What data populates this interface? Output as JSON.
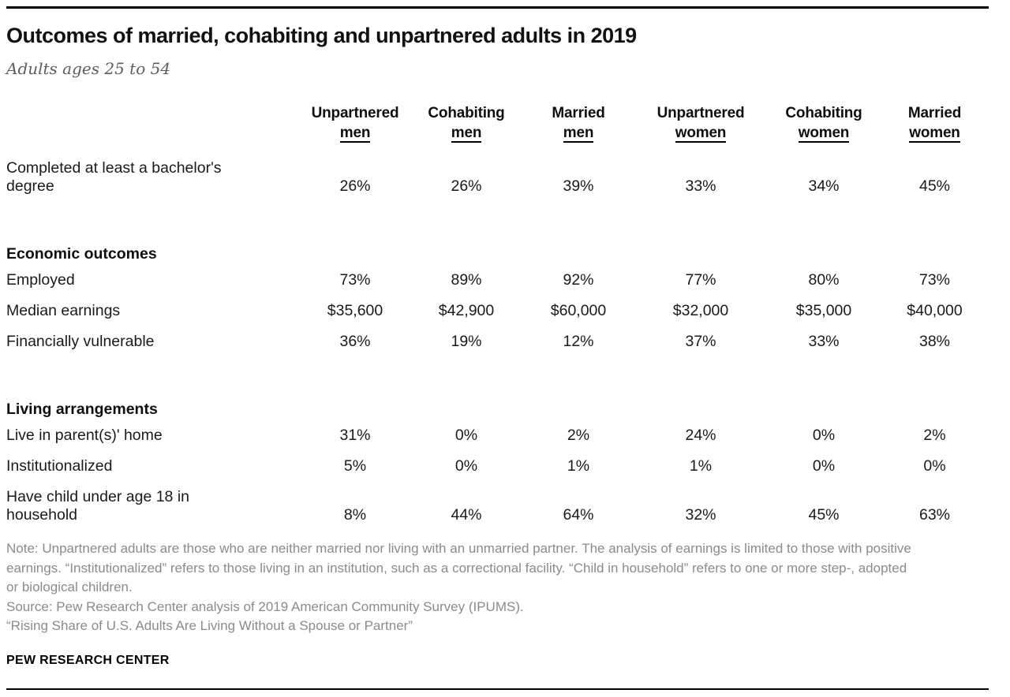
{
  "title": "Outcomes of married, cohabiting and unpartnered adults in 2019",
  "subtitle": "Adults ages 25 to 54",
  "colors": {
    "text": "#1a1a1a",
    "subtitle_gray": "#5e5e5e",
    "note_gray": "#8b8b8b",
    "rule": "#000000"
  },
  "chart_data": {
    "type": "table",
    "title": "Outcomes of married, cohabiting and unpartnered adults in 2019",
    "subtitle": "Adults ages 25 to 54",
    "columns": [
      {
        "top": "Unpartnered",
        "bottom": "men"
      },
      {
        "top": "Cohabiting",
        "bottom": "men"
      },
      {
        "top": "Married",
        "bottom": "men"
      },
      {
        "top": "Unpartnered",
        "bottom": "women"
      },
      {
        "top": "Cohabiting",
        "bottom": "women"
      },
      {
        "top": "Married",
        "bottom": "women"
      }
    ],
    "sections": [
      {
        "header": "",
        "rows": [
          {
            "label": "Completed at least a bachelor's degree",
            "values": [
              "26%",
              "26%",
              "39%",
              "33%",
              "34%",
              "45%"
            ]
          }
        ]
      },
      {
        "header": "Economic outcomes",
        "rows": [
          {
            "label": "Employed",
            "values": [
              "73%",
              "89%",
              "92%",
              "77%",
              "80%",
              "73%"
            ]
          },
          {
            "label": "Median earnings",
            "values": [
              "$35,600",
              "$42,900",
              "$60,000",
              "$32,000",
              "$35,000",
              "$40,000"
            ]
          },
          {
            "label": "Financially vulnerable",
            "values": [
              "36%",
              "19%",
              "12%",
              "37%",
              "33%",
              "38%"
            ]
          }
        ]
      },
      {
        "header": "Living arrangements",
        "rows": [
          {
            "label": "Live in parent(s)' home",
            "values": [
              "31%",
              "0%",
              "2%",
              "24%",
              "0%",
              "2%"
            ]
          },
          {
            "label": "Institutionalized",
            "values": [
              "5%",
              "0%",
              "1%",
              "1%",
              "0%",
              "0%"
            ]
          },
          {
            "label": "Have child under age 18 in household",
            "values": [
              "8%",
              "44%",
              "64%",
              "32%",
              "45%",
              "63%"
            ]
          }
        ]
      }
    ]
  },
  "notes": {
    "note": "Note: Unpartnered adults are those who are neither married nor living with an unmarried partner. The analysis of earnings is limited to those with positive earnings. “Institutionalized” refers to those living in an institution, such as a correctional facility. “Child in household” refers to one or more step-, adopted or biological children.",
    "source": "Source: Pew Research Center analysis of 2019 American Community Survey (IPUMS).",
    "report": "“Rising Share of U.S. Adults Are Living Without a Spouse or Partner”"
  },
  "footer": {
    "brand": "PEW RESEARCH CENTER"
  }
}
